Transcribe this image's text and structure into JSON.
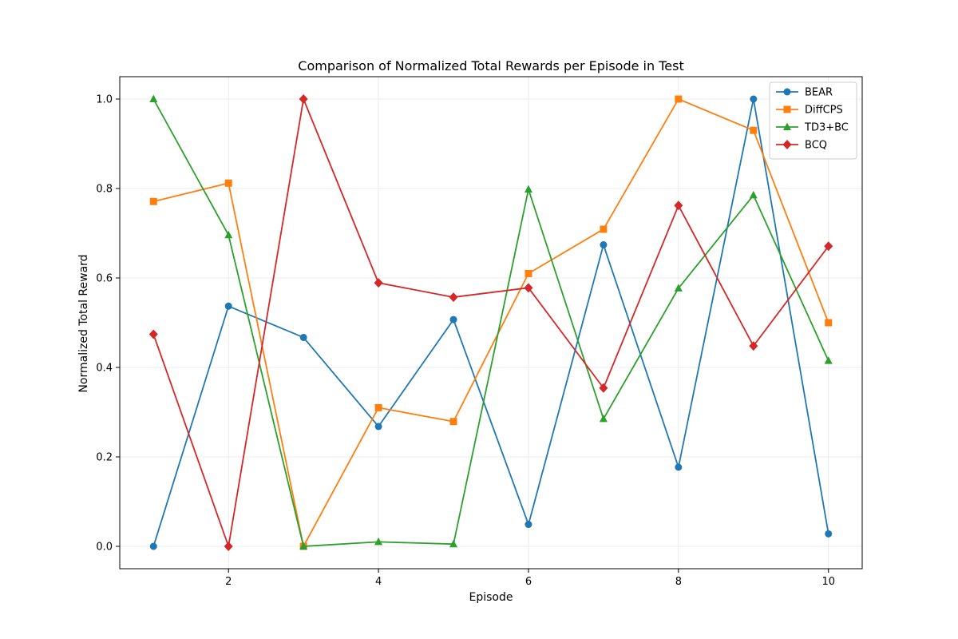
{
  "chart_data": {
    "type": "line",
    "title": "Comparison of Normalized Total Rewards per Episode in Test",
    "xlabel": "Episode",
    "ylabel": "Normalized Total Reward",
    "x": [
      1,
      2,
      3,
      4,
      5,
      6,
      7,
      8,
      9,
      10
    ],
    "xlim": [
      0.55,
      10.45
    ],
    "ylim": [
      -0.05,
      1.05
    ],
    "xticks": [
      2,
      4,
      6,
      8,
      10
    ],
    "yticks": [
      0.0,
      0.2,
      0.4,
      0.6,
      0.8,
      1.0
    ],
    "xtick_labels": [
      "2",
      "4",
      "6",
      "8",
      "10"
    ],
    "ytick_labels": [
      "0.0",
      "0.2",
      "0.4",
      "0.6",
      "0.8",
      "1.0"
    ],
    "grid": true,
    "legend_position": "top-right",
    "series": [
      {
        "name": "BEAR",
        "color": "#1f77b4",
        "marker": "circle",
        "values": [
          0.0,
          0.537,
          0.467,
          0.268,
          0.507,
          0.049,
          0.674,
          0.177,
          1.0,
          0.028
        ]
      },
      {
        "name": "DiffCPS",
        "color": "#ff7f0e",
        "marker": "square",
        "values": [
          0.771,
          0.812,
          0.0,
          0.31,
          0.279,
          0.61,
          0.709,
          1.0,
          0.93,
          0.5
        ]
      },
      {
        "name": "TD3+BC",
        "color": "#2ca02c",
        "marker": "triangle",
        "values": [
          1.0,
          0.696,
          0.0,
          0.01,
          0.005,
          0.798,
          0.285,
          0.577,
          0.785,
          0.415
        ]
      },
      {
        "name": "BCQ",
        "color": "#d62728",
        "marker": "diamond",
        "values": [
          0.474,
          0.0,
          1.0,
          0.589,
          0.557,
          0.578,
          0.354,
          0.762,
          0.448,
          0.671
        ]
      }
    ]
  }
}
